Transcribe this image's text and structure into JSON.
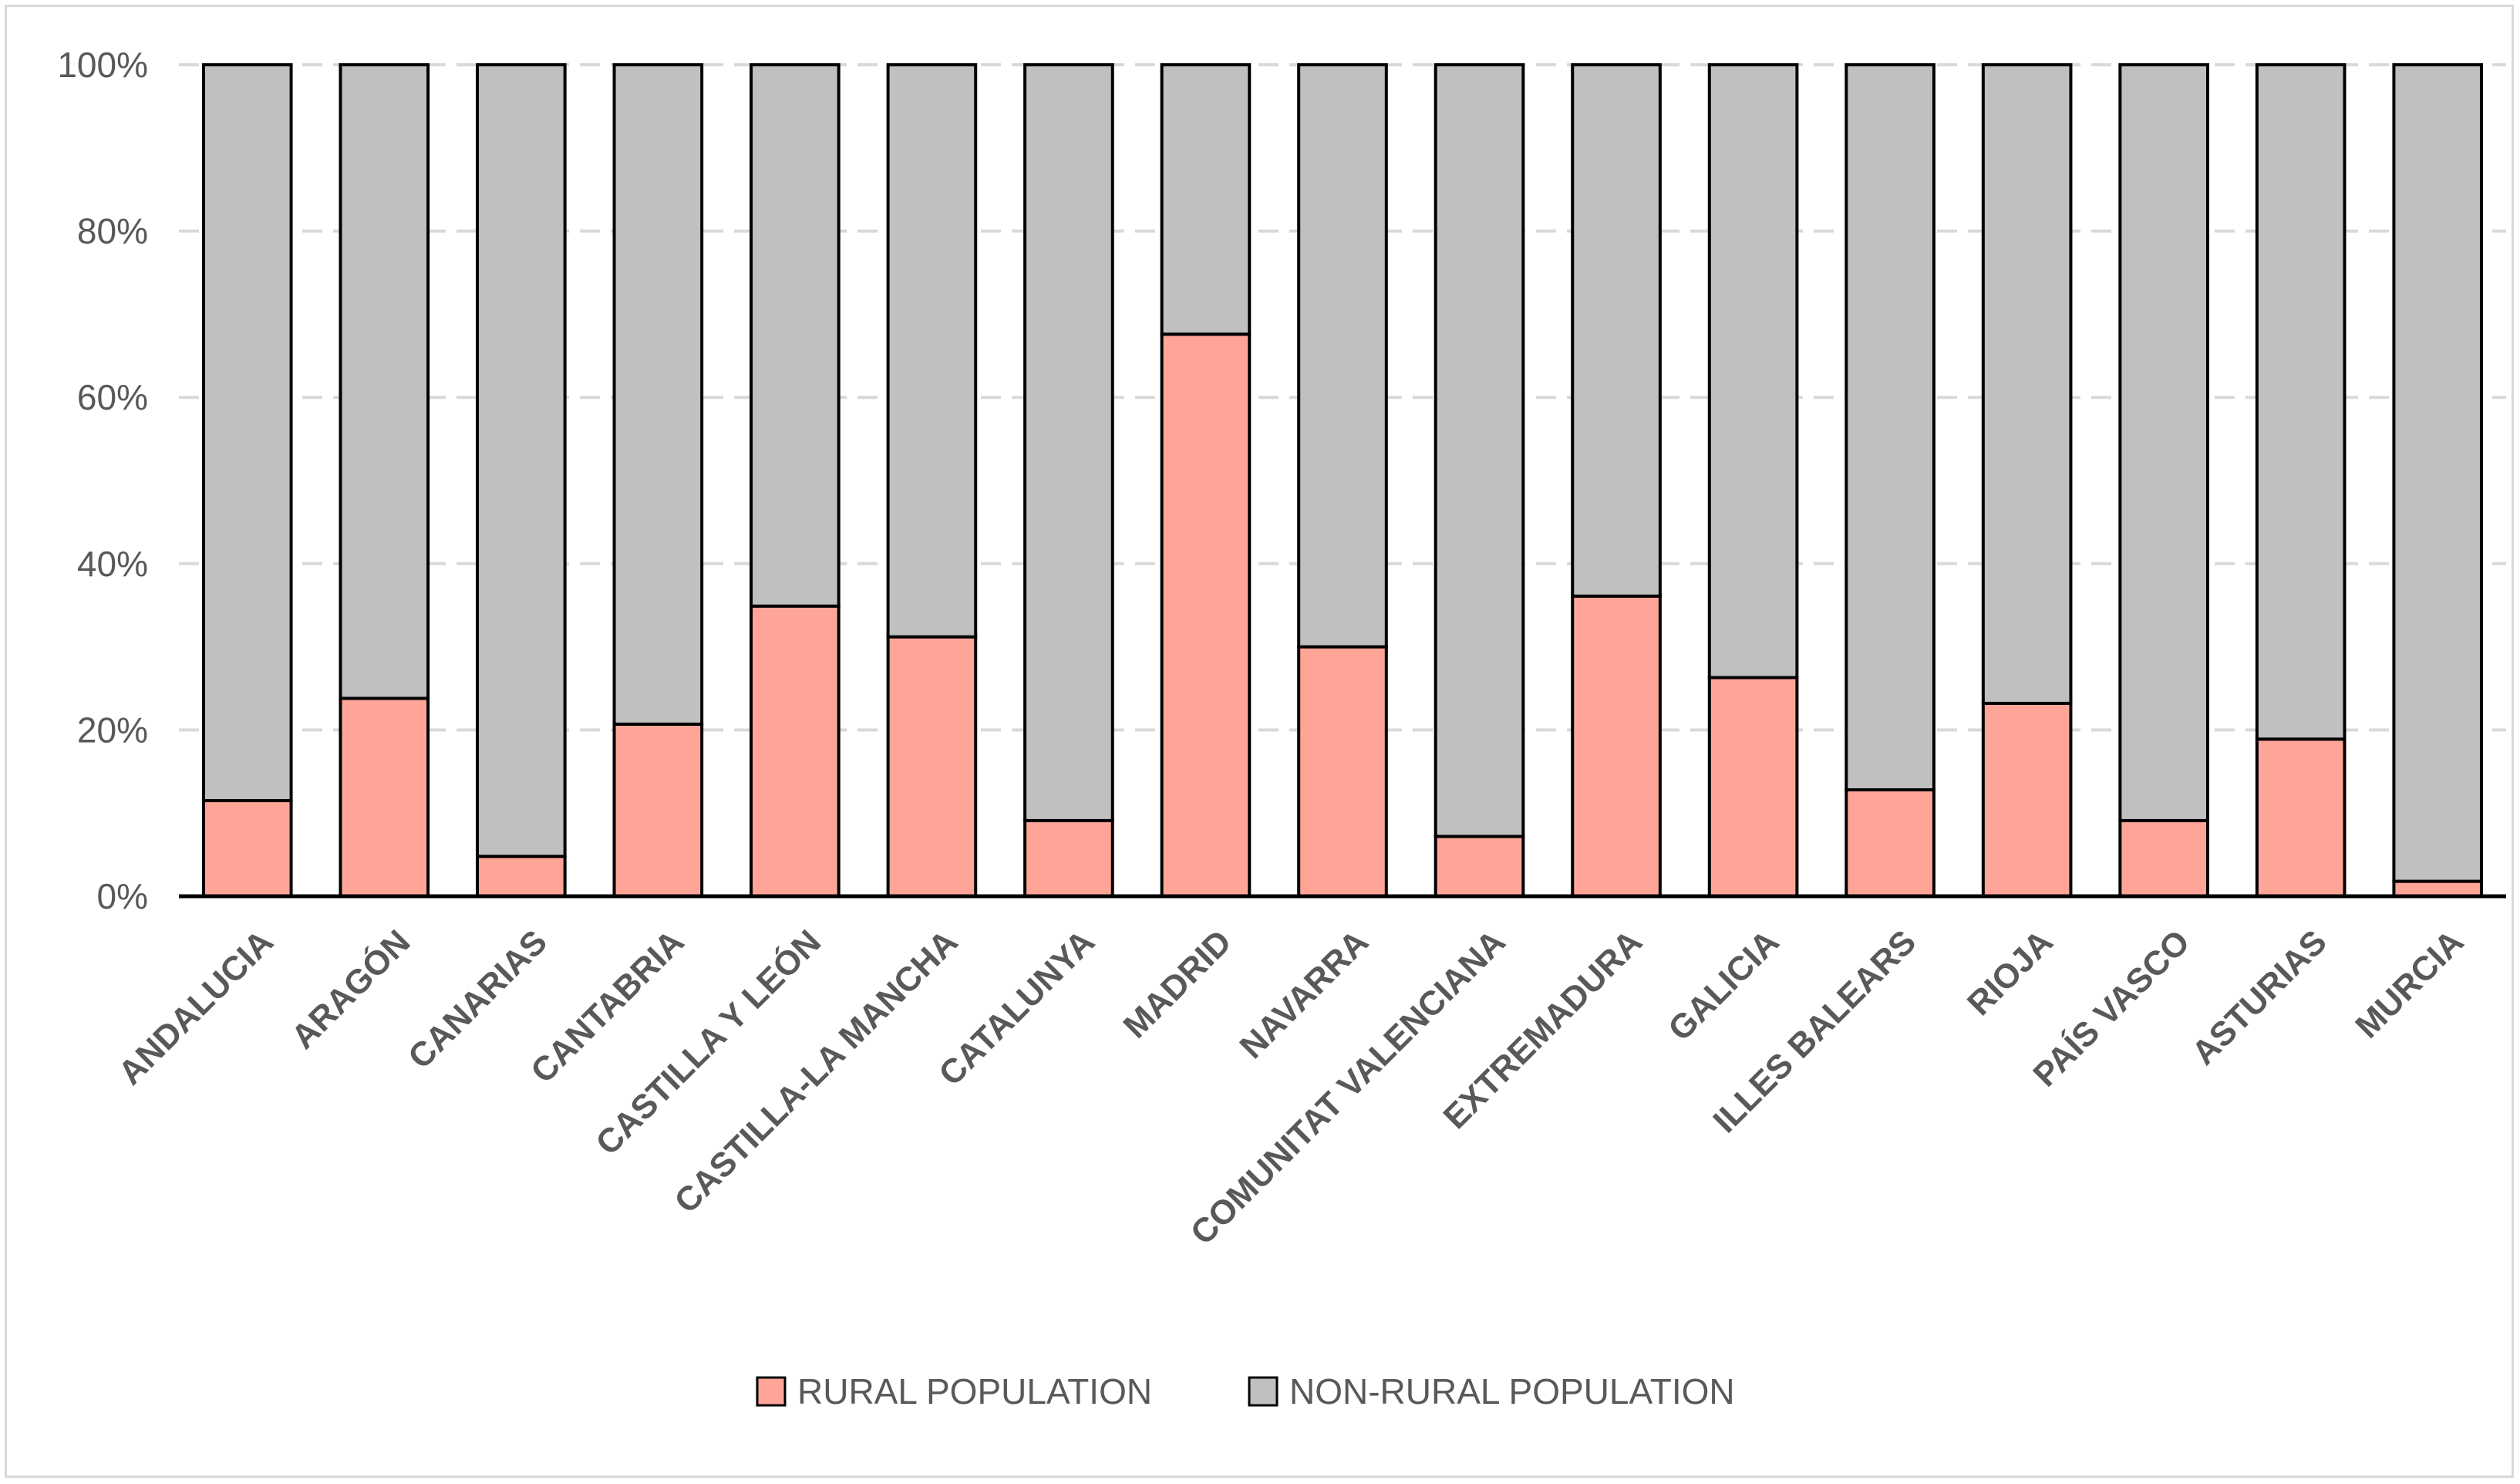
{
  "chart_data": {
    "type": "bar",
    "stacked": true,
    "percent": true,
    "title": "",
    "xlabel": "",
    "ylabel": "",
    "ylim": [
      0,
      100
    ],
    "yticks": [
      0,
      20,
      40,
      60,
      80,
      100
    ],
    "ytick_labels": [
      "0%",
      "20%",
      "40%",
      "60%",
      "80%",
      "100%"
    ],
    "grid": true,
    "legend_position": "bottom",
    "categories": [
      "ANDALUCIA",
      "ARAGÓN",
      "CANARIAS",
      "CANTABRIA",
      "CASTILLA Y LEÓN",
      "CASTILLA-LA MANCHA",
      "CATALUNYA",
      "MADRID",
      "NAVARRA",
      "COMUNITAT VALENCIANA",
      "EXTREMADURA",
      "GALICIA",
      "ILLES BALEARS",
      "RIOJA",
      "PAÍS VASCO",
      "ASTURIAS",
      "MURCIA"
    ],
    "series": [
      {
        "name": "RURAL POPULATION",
        "color": "#ffa597",
        "values": [
          11.5,
          23.8,
          4.8,
          20.7,
          34.9,
          31.2,
          9.1,
          67.6,
          30.0,
          7.2,
          36.1,
          26.3,
          12.8,
          23.2,
          9.1,
          18.9,
          1.8
        ]
      },
      {
        "name": "NON-RURAL POPULATION",
        "color": "#c0c0c0",
        "values": [
          88.5,
          76.2,
          95.2,
          79.3,
          65.1,
          68.8,
          90.9,
          32.4,
          70.0,
          92.8,
          63.9,
          73.7,
          87.2,
          76.8,
          90.9,
          81.1,
          98.2
        ]
      }
    ]
  }
}
